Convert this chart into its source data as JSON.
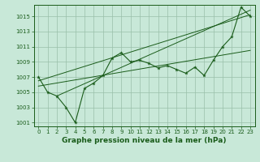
{
  "x": [
    0,
    1,
    2,
    3,
    4,
    5,
    6,
    7,
    8,
    9,
    10,
    11,
    12,
    13,
    14,
    15,
    16,
    17,
    18,
    19,
    20,
    21,
    22,
    23
  ],
  "y": [
    1007,
    1005,
    1004.5,
    1003,
    1001,
    1005.5,
    1006.2,
    1007.2,
    1009.5,
    1010.2,
    1009.0,
    1009.2,
    1008.8,
    1008.2,
    1008.5,
    1008.0,
    1007.5,
    1008.3,
    1007.2,
    1009.2,
    1011.0,
    1012.3,
    1016.2,
    1015.0
  ],
  "trend_lines": [
    {
      "x": [
        0,
        23
      ],
      "y": [
        1005.8,
        1010.5
      ]
    },
    {
      "x": [
        0,
        23
      ],
      "y": [
        1006.5,
        1015.2
      ]
    },
    {
      "x": [
        2,
        23
      ],
      "y": [
        1004.5,
        1015.8
      ]
    }
  ],
  "xlabel": "Graphe pression niveau de la mer (hPa)",
  "ylim": [
    1000.5,
    1016.5
  ],
  "xlim": [
    -0.5,
    23.5
  ],
  "yticks": [
    1001,
    1003,
    1005,
    1007,
    1009,
    1011,
    1013,
    1015
  ],
  "xticks": [
    0,
    1,
    2,
    3,
    4,
    5,
    6,
    7,
    8,
    9,
    10,
    11,
    12,
    13,
    14,
    15,
    16,
    17,
    18,
    19,
    20,
    21,
    22,
    23
  ],
  "line_color": "#1a5c1a",
  "bg_color": "#c8e8d8",
  "grid_color": "#9abfaa",
  "tick_fontsize": 5,
  "xlabel_fontsize": 6.5
}
